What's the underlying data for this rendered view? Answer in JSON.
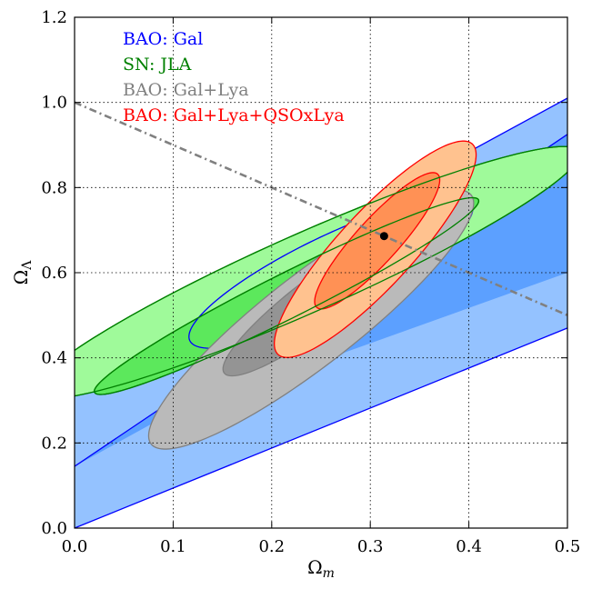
{
  "chart_data": {
    "type": "contour",
    "title": "",
    "xlabel": "Ω",
    "xlabel_sub": "m",
    "ylabel": "Ω",
    "ylabel_sub": "Λ",
    "xlim": [
      0.0,
      0.5
    ],
    "ylim": [
      0.0,
      1.2
    ],
    "xticks": [
      0.0,
      0.1,
      0.2,
      0.3,
      0.4,
      0.5
    ],
    "xtick_labels": [
      "0.0",
      "0.1",
      "0.2",
      "0.3",
      "0.4",
      "0.5"
    ],
    "yticks": [
      0.0,
      0.2,
      0.4,
      0.6,
      0.8,
      1.0,
      1.2
    ],
    "ytick_labels": [
      "0.0",
      "0.2",
      "0.4",
      "0.6",
      "0.8",
      "1.0",
      "1.2"
    ],
    "grid": true,
    "legend": [
      {
        "label": "BAO: Gal",
        "color": "#0000ff"
      },
      {
        "label": "SN: JLA",
        "color": "#008000"
      },
      {
        "label": "BAO: Gal+Lya",
        "color": "#808080"
      },
      {
        "label": "BAO: Gal+Lya+QSOxLya",
        "color": "#ff0000"
      }
    ],
    "flat_universe_line": {
      "x": [
        0.0,
        0.5
      ],
      "y": [
        1.0,
        0.5
      ],
      "color": "#808080"
    },
    "best_fit_point": {
      "x": 0.314,
      "y": 0.686
    },
    "series": [
      {
        "name": "BAO: Gal",
        "outer_fill": "#94c2ff",
        "inner_fill": "#5ca0ff",
        "edge": "#0000ff",
        "band_2sigma": {
          "x": [
            0.0,
            0.5
          ],
          "lower": [
            0.0,
            0.47
          ],
          "upper": [
            0.38,
            1.01
          ]
        },
        "band_1sigma_upper": {
          "x": [
            0.0,
            0.5
          ],
          "y": [
            0.145,
            0.925
          ]
        },
        "band_1sigma_lower_from": [
          0.09,
          0.26
        ],
        "ellipse_1sigma": {
          "cx": 0.26,
          "cy": 0.6,
          "a": 0.22,
          "b": 0.062,
          "angle_deg": 52
        }
      },
      {
        "name": "SN: JLA",
        "outer_fill": "#9ffa9a",
        "inner_fill": "#5ce85c",
        "edge": "#008000",
        "ellipse_2sigma": {
          "cx": 0.235,
          "cy": 0.6,
          "a": 0.4,
          "b": 0.07,
          "angle_deg": 47
        },
        "ellipse_1sigma": {
          "cx": 0.215,
          "cy": 0.545,
          "a": 0.3,
          "b": 0.038,
          "angle_deg": 50
        }
      },
      {
        "name": "BAO: Gal+Lya",
        "outer_fill": "#bababa",
        "inner_fill": "#949494",
        "edge": "#808080",
        "ellipse_2sigma": {
          "cx": 0.24,
          "cy": 0.49,
          "a": 0.34,
          "b": 0.065,
          "angle_deg": 63
        },
        "ellipse_1sigma": {
          "cx": 0.25,
          "cy": 0.535,
          "a": 0.2,
          "b": 0.037,
          "angle_deg": 62
        }
      },
      {
        "name": "BAO: Gal+Lya+QSOxLya",
        "outer_fill": "#ffc28f",
        "inner_fill": "#ff9155",
        "edge": "#ff0000",
        "ellipse_2sigma": {
          "cx": 0.305,
          "cy": 0.655,
          "a": 0.27,
          "b": 0.047,
          "angle_deg": 70
        },
        "ellipse_1sigma": {
          "cx": 0.307,
          "cy": 0.675,
          "a": 0.17,
          "b": 0.027,
          "angle_deg": 70
        }
      }
    ]
  }
}
